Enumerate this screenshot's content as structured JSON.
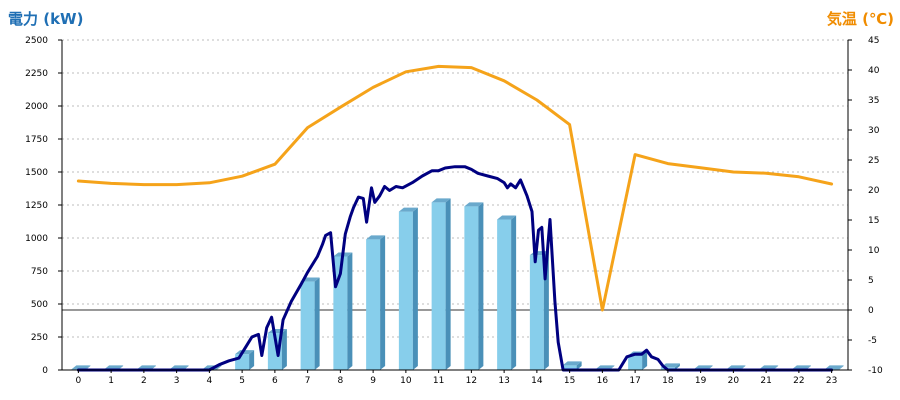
{
  "chart_data": {
    "type": "bar",
    "left_axis_title": "電力 (kW)",
    "right_axis_title": "気温 (℃)",
    "categories": [
      "0",
      "1",
      "2",
      "3",
      "4",
      "5",
      "6",
      "7",
      "8",
      "9",
      "10",
      "11",
      "12",
      "13",
      "14",
      "15",
      "16",
      "17",
      "18",
      "19",
      "20",
      "21",
      "22",
      "23"
    ],
    "ylim": [
      0,
      2500
    ],
    "y_ticks": [
      0,
      250,
      500,
      750,
      1000,
      1250,
      1500,
      1750,
      2000,
      2250,
      2500
    ],
    "y2lim": [
      -10,
      45
    ],
    "y2_ticks": [
      -10,
      -5,
      0,
      5,
      10,
      15,
      20,
      25,
      30,
      35,
      40,
      45
    ],
    "grid": true,
    "colors": {
      "bars": "#87ceeb",
      "line": "#000080",
      "temperature": "#f5a31a",
      "left_title": "#1f6fb4",
      "right_title": "#f08c00"
    },
    "series": [
      {
        "type": "bar",
        "values": [
          5,
          5,
          5,
          5,
          5,
          120,
          280,
          670,
          860,
          990,
          1200,
          1270,
          1240,
          1140,
          870,
          35,
          5,
          110,
          20,
          5,
          5,
          5,
          5,
          5
        ]
      },
      {
        "type": "line",
        "x": [
          0,
          1,
          2,
          3,
          4,
          4.3,
          4.6,
          4.9,
          5.1,
          5.3,
          5.5,
          5.6,
          5.75,
          5.9,
          6.1,
          6.25,
          6.5,
          6.8,
          7.0,
          7.3,
          7.45,
          7.55,
          7.7,
          7.85,
          8.0,
          8.15,
          8.3,
          8.4,
          8.55,
          8.7,
          8.8,
          8.95,
          9.05,
          9.2,
          9.35,
          9.5,
          9.7,
          9.9,
          10.2,
          10.5,
          10.8,
          11.0,
          11.2,
          11.5,
          11.8,
          12.0,
          12.2,
          12.5,
          12.8,
          13.0,
          13.1,
          13.2,
          13.35,
          13.5,
          13.7,
          13.85,
          13.95,
          14.05,
          14.15,
          14.25,
          14.4,
          14.55,
          14.65,
          14.8,
          15,
          16,
          16.5,
          16.75,
          17.0,
          17.2,
          17.35,
          17.5,
          17.7,
          17.85,
          18.0,
          18.5,
          19,
          20,
          21,
          22,
          23
        ],
        "values": [
          0,
          0,
          0,
          0,
          0,
          40,
          70,
          90,
          170,
          250,
          270,
          110,
          320,
          400,
          110,
          380,
          520,
          650,
          740,
          860,
          950,
          1020,
          1040,
          630,
          730,
          1030,
          1160,
          1230,
          1310,
          1300,
          1120,
          1380,
          1270,
          1320,
          1390,
          1360,
          1390,
          1380,
          1420,
          1470,
          1510,
          1510,
          1530,
          1540,
          1540,
          1520,
          1490,
          1470,
          1450,
          1420,
          1380,
          1410,
          1380,
          1440,
          1320,
          1200,
          820,
          1060,
          1080,
          690,
          1140,
          520,
          210,
          0,
          0,
          0,
          0,
          100,
          120,
          120,
          150,
          100,
          80,
          30,
          0,
          0,
          0,
          0,
          0,
          0,
          0
        ]
      },
      {
        "type": "line",
        "axis": "right",
        "x": [
          0,
          1,
          2,
          3,
          4,
          5,
          6,
          7,
          8,
          9,
          10,
          11,
          12,
          13,
          14,
          15,
          16,
          17,
          18,
          19,
          20,
          21,
          22,
          23
        ],
        "values": [
          21.5,
          21.1,
          20.9,
          20.9,
          21.2,
          22.3,
          24.3,
          30.4,
          33.8,
          37.1,
          39.7,
          40.6,
          40.4,
          38.2,
          35.0,
          30.9,
          0.0,
          25.9,
          24.4,
          23.7,
          23.0,
          22.8,
          22.2,
          21.0
        ]
      }
    ]
  }
}
